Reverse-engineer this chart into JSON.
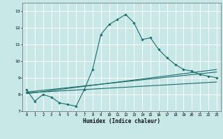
{
  "xlabel": "Humidex (Indice chaleur)",
  "background_color": "#c8e8e8",
  "grid_color": "#ffffff",
  "line_color": "#1a6b6b",
  "xlim": [
    -0.5,
    23.5
  ],
  "ylim": [
    7,
    13.5
  ],
  "yticks": [
    7,
    8,
    9,
    10,
    11,
    12,
    13
  ],
  "xticks": [
    0,
    1,
    2,
    3,
    4,
    5,
    6,
    7,
    8,
    9,
    10,
    11,
    12,
    13,
    14,
    15,
    16,
    17,
    18,
    19,
    20,
    21,
    22,
    23
  ],
  "series_main_x": [
    0,
    1,
    2,
    3,
    4,
    5,
    6,
    7,
    8,
    9,
    10,
    11,
    12,
    13,
    14,
    15,
    16,
    17,
    18,
    19,
    20,
    21,
    22,
    23
  ],
  "series_main_y": [
    8.3,
    7.6,
    8.0,
    7.85,
    7.5,
    7.4,
    7.3,
    8.3,
    9.5,
    11.6,
    12.2,
    12.5,
    12.8,
    12.3,
    11.3,
    11.4,
    10.7,
    10.2,
    9.8,
    9.5,
    9.4,
    9.2,
    9.1,
    9.0
  ],
  "line1_x": [
    0,
    23
  ],
  "line1_y": [
    8.15,
    9.35
  ],
  "line2_x": [
    0,
    23
  ],
  "line2_y": [
    8.05,
    9.5
  ],
  "line3_x": [
    0,
    23
  ],
  "line3_y": [
    8.1,
    8.75
  ]
}
